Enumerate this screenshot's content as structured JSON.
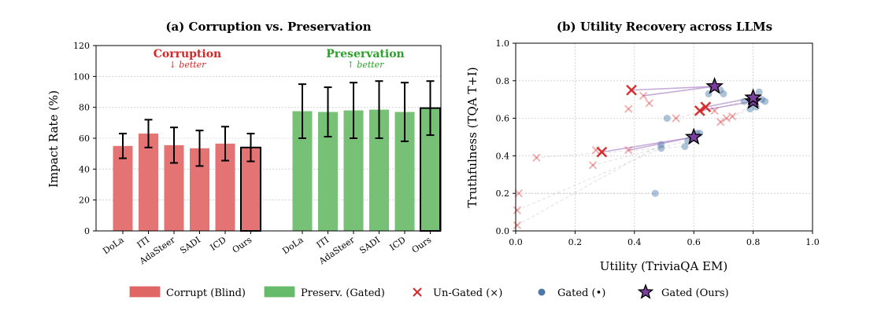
{
  "chart_data": [
    {
      "type": "bar",
      "title": "(a) Corruption vs. Preservation",
      "ylabel": "Impact Rate (%)",
      "ylim": [
        0,
        120
      ],
      "yticks": [
        0,
        20,
        40,
        60,
        80,
        100,
        120
      ],
      "grid": true,
      "groups": [
        {
          "label": "Corruption",
          "sublabel": "↓ better",
          "color": "#d62728",
          "categories": [
            "DoLa",
            "ITI",
            "AdaSteer",
            "SADI",
            "ICD",
            "Ours"
          ],
          "values": [
            55,
            63,
            55.5,
            53.5,
            56.5,
            54
          ],
          "errors": [
            8,
            9,
            11.5,
            11.5,
            11,
            9
          ]
        },
        {
          "label": "Preservation",
          "sublabel": "↑ better",
          "color": "#2ca02c",
          "categories": [
            "DoLa",
            "ITI",
            "AdaSteer",
            "SADI",
            "ICD",
            "Ours"
          ],
          "values": [
            77.5,
            77,
            78,
            78.5,
            77,
            79.5
          ],
          "errors": [
            17.5,
            16,
            18,
            18.5,
            19,
            17.5
          ]
        }
      ]
    },
    {
      "type": "scatter",
      "title": "(b) Utility Recovery across LLMs",
      "xlabel": "Utility (TriviaQA EM)",
      "ylabel": "Truthfulness (TQA T+I)",
      "xlim": [
        0,
        1
      ],
      "ylim": [
        0,
        1
      ],
      "xticks": [
        0,
        0.2,
        0.4,
        0.6,
        0.8,
        1.0
      ],
      "yticks": [
        0,
        0.2,
        0.4,
        0.6,
        0.8,
        1.0
      ],
      "grid": true,
      "series": [
        {
          "name": "Un-Gated (×)",
          "marker": "x",
          "color": "#d62728",
          "faded_points": [
            [
              0.01,
              0.2
            ],
            [
              0.005,
              0.11
            ],
            [
              0.005,
              0.03
            ],
            [
              0.07,
              0.39
            ],
            [
              0.26,
              0.35
            ],
            [
              0.27,
              0.43
            ],
            [
              0.38,
              0.43
            ],
            [
              0.38,
              0.65
            ],
            [
              0.43,
              0.72
            ],
            [
              0.45,
              0.68
            ],
            [
              0.54,
              0.6
            ],
            [
              0.69,
              0.58
            ],
            [
              0.71,
              0.6
            ],
            [
              0.73,
              0.61
            ],
            [
              0.67,
              0.64
            ]
          ],
          "highlight_points": [
            [
              0.29,
              0.42
            ],
            [
              0.39,
              0.75
            ],
            [
              0.62,
              0.64
            ],
            [
              0.64,
              0.66
            ]
          ]
        },
        {
          "name": "Gated (•)",
          "marker": "circle",
          "color": "#4c78a8",
          "points": [
            [
              0.47,
              0.2
            ],
            [
              0.49,
              0.44
            ],
            [
              0.49,
              0.46
            ],
            [
              0.51,
              0.6
            ],
            [
              0.57,
              0.45
            ],
            [
              0.58,
              0.48
            ],
            [
              0.61,
              0.52
            ],
            [
              0.62,
              0.52
            ],
            [
              0.65,
              0.73
            ],
            [
              0.69,
              0.75
            ],
            [
              0.7,
              0.73
            ],
            [
              0.77,
              0.69
            ],
            [
              0.79,
              0.65
            ],
            [
              0.81,
              0.66
            ],
            [
              0.83,
              0.7
            ],
            [
              0.84,
              0.69
            ],
            [
              0.82,
              0.74
            ]
          ]
        },
        {
          "name": "Gated (Ours)",
          "marker": "star",
          "color": "#7b3f9e",
          "points": [
            [
              0.6,
              0.5
            ],
            [
              0.67,
              0.77
            ],
            [
              0.8,
              0.69
            ],
            [
              0.8,
              0.71
            ]
          ]
        }
      ],
      "arrows": [
        {
          "from": [
            0.29,
            0.42
          ],
          "to": [
            0.6,
            0.5
          ]
        },
        {
          "from": [
            0.39,
            0.75
          ],
          "to": [
            0.67,
            0.77
          ]
        },
        {
          "from": [
            0.62,
            0.64
          ],
          "to": [
            0.8,
            0.69
          ]
        },
        {
          "from": [
            0.64,
            0.66
          ],
          "to": [
            0.8,
            0.71
          ]
        },
        {
          "from": [
            0.38,
            0.43
          ],
          "to": [
            0.6,
            0.5
          ]
        },
        {
          "from": [
            0.43,
            0.72
          ],
          "to": [
            0.67,
            0.77
          ]
        }
      ],
      "faded_arrows": [
        {
          "from": [
            0.01,
            0.2
          ],
          "to": [
            0.47,
            0.2
          ]
        },
        {
          "from": [
            0.005,
            0.11
          ],
          "to": [
            0.49,
            0.44
          ]
        },
        {
          "from": [
            0.005,
            0.03
          ],
          "to": [
            0.49,
            0.46
          ]
        },
        {
          "from": [
            0.07,
            0.39
          ],
          "to": [
            0.57,
            0.45
          ]
        },
        {
          "from": [
            0.26,
            0.35
          ],
          "to": [
            0.58,
            0.48
          ]
        },
        {
          "from": [
            0.54,
            0.6
          ],
          "to": [
            0.77,
            0.69
          ]
        },
        {
          "from": [
            0.69,
            0.58
          ],
          "to": [
            0.79,
            0.65
          ]
        },
        {
          "from": [
            0.73,
            0.61
          ],
          "to": [
            0.83,
            0.7
          ]
        }
      ]
    }
  ],
  "legend": {
    "items": [
      {
        "label": "Corrupt (Blind)",
        "kind": "patch",
        "color": "#e06666"
      },
      {
        "label": "Preserv. (Gated)",
        "kind": "patch",
        "color": "#66bb6a"
      },
      {
        "label": "Un-Gated (×)",
        "kind": "x",
        "color": "#d62728"
      },
      {
        "label": "Gated (•)",
        "kind": "circle",
        "color": "#4c78a8"
      },
      {
        "label": "Gated (Ours)",
        "kind": "star",
        "color": "#7b3f9e"
      }
    ]
  }
}
